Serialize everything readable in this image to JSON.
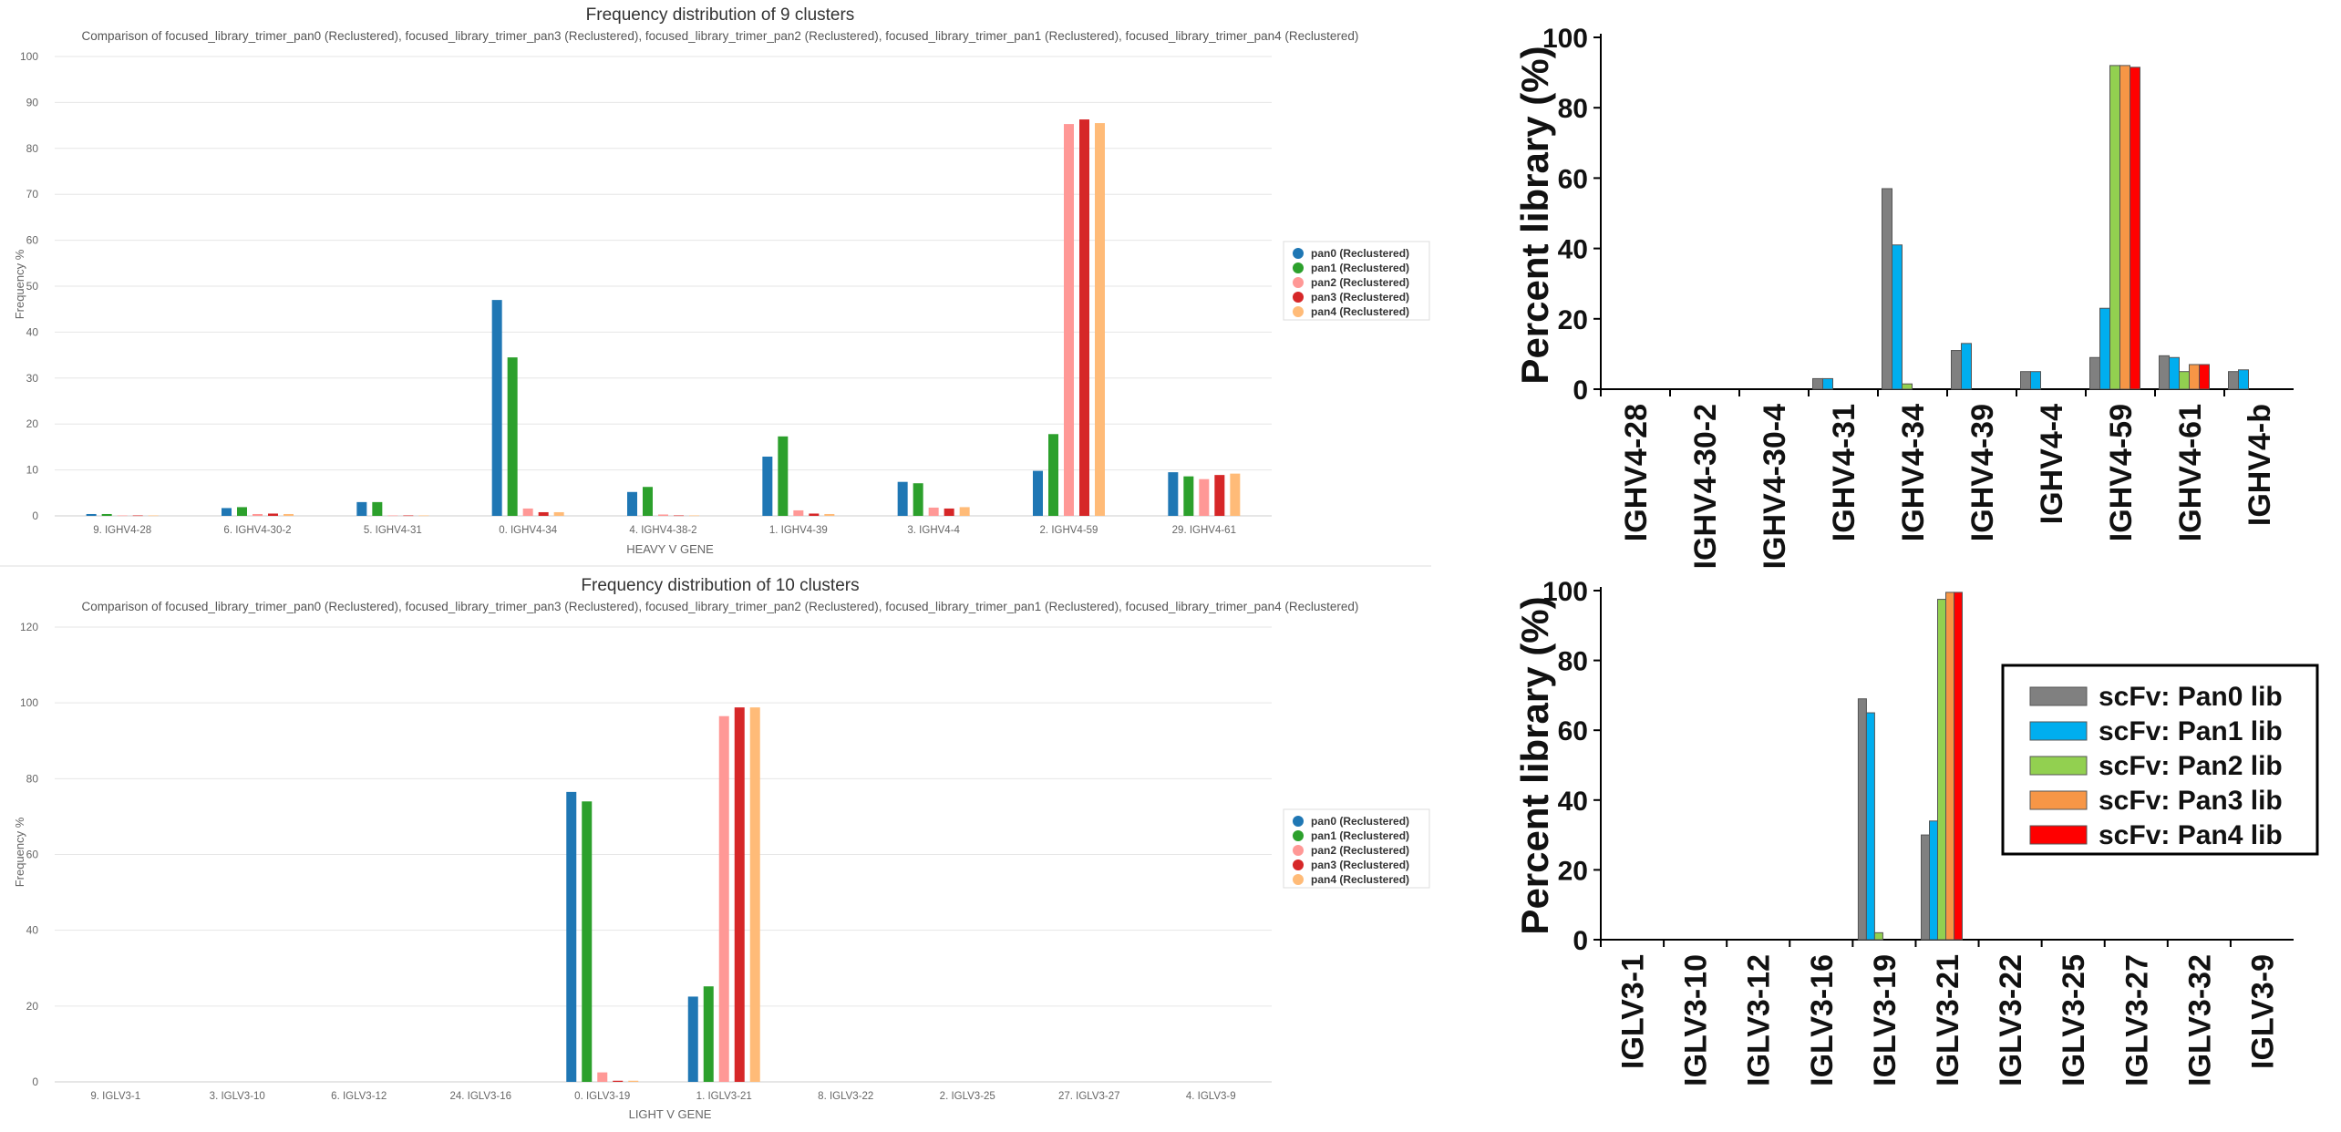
{
  "chart_data": [
    {
      "type": "bar",
      "title": "Frequency distribution of 9 clusters",
      "subtitle": "Comparison of focused_library_trimer_pan0 (Reclustered), focused_library_trimer_pan3 (Reclustered), focused_library_trimer_pan2 (Reclustered), focused_library_trimer_pan1 (Reclustered), focused_library_trimer_pan4 (Reclustered)",
      "xlabel": "HEAVY V GENE",
      "ylabel": "Frequency %",
      "ylim": [
        0,
        100
      ],
      "yticks": [
        0,
        10,
        20,
        30,
        40,
        50,
        60,
        70,
        80,
        90,
        100
      ],
      "grid": true,
      "legend_position": "right",
      "categories": [
        "9. IGHV4-28",
        "6. IGHV4-30-2",
        "5. IGHV4-31",
        "0. IGHV4-34",
        "4. IGHV4-38-2",
        "1. IGHV4-39",
        "3. IGHV4-4",
        "2. IGHV4-59",
        "29. IGHV4-61"
      ],
      "series": [
        {
          "name": "pan0 (Reclustered)",
          "color": "#1f77b4",
          "values": [
            0.4,
            1.7,
            3.0,
            47.0,
            5.2,
            12.9,
            7.4,
            9.8,
            9.5
          ]
        },
        {
          "name": "pan1 (Reclustered)",
          "color": "#2ca02c",
          "values": [
            0.4,
            1.9,
            3.0,
            34.5,
            6.3,
            17.3,
            7.1,
            17.8,
            8.6
          ]
        },
        {
          "name": "pan2 (Reclustered)",
          "color": "#ff9896",
          "values": [
            0.1,
            0.4,
            0.1,
            1.6,
            0.3,
            1.2,
            1.8,
            85.3,
            8.0
          ]
        },
        {
          "name": "pan3 (Reclustered)",
          "color": "#d62728",
          "values": [
            0.1,
            0.5,
            0.1,
            0.8,
            0.1,
            0.5,
            1.6,
            86.3,
            8.9
          ]
        },
        {
          "name": "pan4 (Reclustered)",
          "color": "#ffbb78",
          "values": [
            0.1,
            0.4,
            0.1,
            0.8,
            0.1,
            0.4,
            1.9,
            85.5,
            9.2
          ]
        }
      ]
    },
    {
      "type": "bar",
      "title": "Frequency distribution of 10 clusters",
      "subtitle": "Comparison of focused_library_trimer_pan0 (Reclustered), focused_library_trimer_pan3 (Reclustered), focused_library_trimer_pan2 (Reclustered), focused_library_trimer_pan1 (Reclustered), focused_library_trimer_pan4 (Reclustered)",
      "xlabel": "LIGHT V GENE",
      "ylabel": "Frequency %",
      "ylim": [
        0,
        120
      ],
      "yticks": [
        0,
        20,
        40,
        60,
        80,
        100,
        120
      ],
      "grid": true,
      "legend_position": "right",
      "categories": [
        "9. IGLV3-1",
        "3. IGLV3-10",
        "6. IGLV3-12",
        "24. IGLV3-16",
        "0. IGLV3-19",
        "1. IGLV3-21",
        "8. IGLV3-22",
        "2. IGLV3-25",
        "27. IGLV3-27",
        "4. IGLV3-9"
      ],
      "series": [
        {
          "name": "pan0 (Reclustered)",
          "color": "#1f77b4",
          "values": [
            0,
            0,
            0,
            0,
            76.5,
            22.5,
            0,
            0,
            0,
            0
          ]
        },
        {
          "name": "pan1 (Reclustered)",
          "color": "#2ca02c",
          "values": [
            0,
            0,
            0,
            0,
            74,
            25.2,
            0,
            0,
            0,
            0
          ]
        },
        {
          "name": "pan2 (Reclustered)",
          "color": "#ff9896",
          "values": [
            0,
            0,
            0,
            0,
            2.5,
            96.5,
            0,
            0,
            0,
            0
          ]
        },
        {
          "name": "pan3 (Reclustered)",
          "color": "#d62728",
          "values": [
            0,
            0,
            0,
            0,
            0.3,
            98.8,
            0,
            0,
            0,
            0
          ]
        },
        {
          "name": "pan4 (Reclustered)",
          "color": "#ffbb78",
          "values": [
            0,
            0,
            0,
            0,
            0.3,
            98.8,
            0,
            0,
            0,
            0
          ]
        }
      ]
    },
    {
      "type": "bar",
      "title": "",
      "xlabel": "",
      "ylabel": "Percent library (%)",
      "ylim": [
        0,
        100
      ],
      "yticks": [
        0,
        20,
        40,
        60,
        80,
        100
      ],
      "grid": false,
      "categories": [
        "IGHV4-28",
        "IGHV4-30-2",
        "IGHV4-30-4",
        "IGHV4-31",
        "IGHV4-34",
        "IGHV4-39",
        "IGHV4-4",
        "IGHV4-59",
        "IGHV4-61",
        "IGHV4-b"
      ],
      "series": [
        {
          "name": "scFv: Pan0 lib",
          "color": "#808080",
          "values": [
            0,
            0,
            0,
            3,
            57,
            11,
            5,
            9,
            9.5,
            5
          ]
        },
        {
          "name": "scFv: Pan1 lib",
          "color": "#00aeef",
          "values": [
            0,
            0,
            0,
            3,
            41,
            13,
            5,
            23,
            9,
            5.5
          ]
        },
        {
          "name": "scFv: Pan2 lib",
          "color": "#92d050",
          "values": [
            0,
            0,
            0,
            0,
            1.5,
            0,
            0,
            92,
            5,
            0
          ]
        },
        {
          "name": "scFv: Pan3 lib",
          "color": "#f79646",
          "values": [
            0,
            0,
            0,
            0,
            0,
            0,
            0,
            92,
            7,
            0
          ]
        },
        {
          "name": "scFv: Pan4 lib",
          "color": "#ff0000",
          "values": [
            0,
            0,
            0,
            0,
            0,
            0,
            0,
            91.5,
            7,
            0
          ]
        }
      ]
    },
    {
      "type": "bar",
      "title": "",
      "xlabel": "",
      "ylabel": "Percent library (%)",
      "ylim": [
        0,
        100
      ],
      "yticks": [
        0,
        20,
        40,
        60,
        80,
        100
      ],
      "grid": false,
      "legend_position": "right",
      "categories": [
        "IGLV3-1",
        "IGLV3-10",
        "IGLV3-12",
        "IGLV3-16",
        "IGLV3-19",
        "IGLV3-21",
        "IGLV3-22",
        "IGLV3-25",
        "IGLV3-27",
        "IGLV3-32",
        "IGLV3-9"
      ],
      "series": [
        {
          "name": "scFv: Pan0 lib",
          "color": "#808080",
          "values": [
            0,
            0,
            0,
            0,
            69,
            30,
            0,
            0,
            0,
            0,
            0
          ]
        },
        {
          "name": "scFv: Pan1 lib",
          "color": "#00aeef",
          "values": [
            0,
            0,
            0,
            0,
            65,
            34,
            0,
            0,
            0,
            0,
            0
          ]
        },
        {
          "name": "scFv: Pan2 lib",
          "color": "#92d050",
          "values": [
            0,
            0,
            0,
            0,
            2,
            97.5,
            0,
            0,
            0,
            0,
            0
          ]
        },
        {
          "name": "scFv: Pan3 lib",
          "color": "#f79646",
          "values": [
            0,
            0,
            0,
            0,
            0,
            99.5,
            0,
            0,
            0,
            0,
            0
          ]
        },
        {
          "name": "scFv: Pan4 lib",
          "color": "#ff0000",
          "values": [
            0,
            0,
            0,
            0,
            0,
            99.5,
            0,
            0,
            0,
            0,
            0
          ]
        }
      ]
    }
  ]
}
